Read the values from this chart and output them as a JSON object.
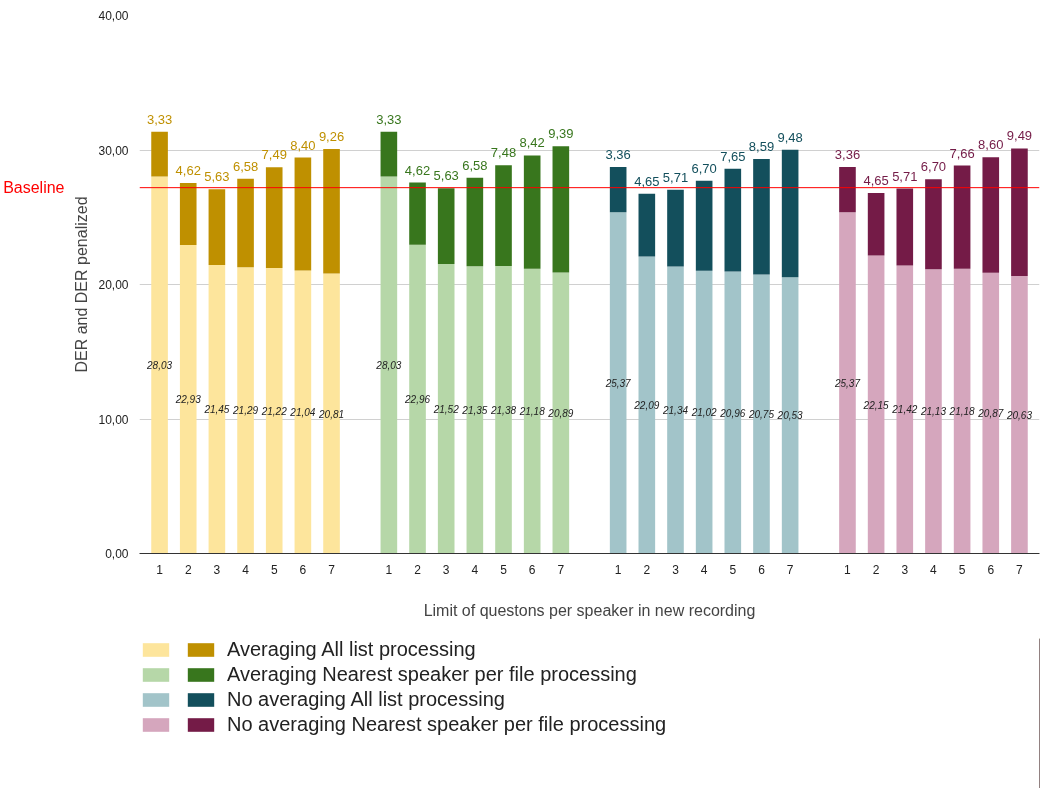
{
  "chart_data": {
    "type": "bar",
    "stacked": true,
    "xlabel": "Limit of questons per speaker in new recording",
    "ylabel": "DER and DER penalized",
    "categories": [
      "1",
      "2",
      "3",
      "4",
      "5",
      "6",
      "7",
      null,
      "1",
      "2",
      "3",
      "4",
      "5",
      "6",
      "7",
      null,
      "1",
      "2",
      "3",
      "4",
      "5",
      "6",
      "7",
      null,
      "1",
      "2",
      "3",
      "4",
      "5",
      "6",
      "7"
    ],
    "series": [
      {
        "color": "#fde59c",
        "values": [
          28.03,
          22.93,
          21.45,
          21.29,
          21.22,
          21.04,
          20.81,
          null,
          null,
          null,
          null,
          null,
          null,
          null,
          null,
          null,
          null,
          null,
          null,
          null,
          null,
          null,
          null,
          null,
          null,
          null,
          null,
          null,
          null,
          null,
          null
        ],
        "value_labels": [
          "28,03",
          "22,93",
          "21,45",
          "21,29",
          "21,22",
          "21,04",
          "20,81",
          null,
          null,
          null,
          null,
          null,
          null,
          null,
          null,
          null,
          null,
          null,
          null,
          null,
          null,
          null,
          null,
          null,
          null,
          null,
          null,
          null,
          null,
          null,
          null
        ]
      },
      {
        "name": "Averaging All list processing",
        "color": "#bf9000",
        "values": [
          3.33,
          4.62,
          5.63,
          6.58,
          7.49,
          8.4,
          9.26,
          null,
          null,
          null,
          null,
          null,
          null,
          null,
          null,
          null,
          null,
          null,
          null,
          null,
          null,
          null,
          null,
          null,
          null,
          null,
          null,
          null,
          null,
          null,
          null
        ],
        "value_labels": [
          "3,33",
          "4,62",
          "5,63",
          "6,58",
          "7,49",
          "8,40",
          "9,26",
          null,
          null,
          null,
          null,
          null,
          null,
          null,
          null,
          null,
          null,
          null,
          null,
          null,
          null,
          null,
          null,
          null,
          null,
          null,
          null,
          null,
          null,
          null,
          null
        ]
      },
      {
        "color": "#b6d7a8",
        "values": [
          null,
          null,
          null,
          null,
          null,
          null,
          null,
          null,
          28.03,
          22.96,
          21.52,
          21.35,
          21.38,
          21.18,
          20.89,
          null,
          null,
          null,
          null,
          null,
          null,
          null,
          null,
          null,
          null,
          null,
          null,
          null,
          null,
          null,
          null
        ],
        "value_labels": [
          null,
          null,
          null,
          null,
          null,
          null,
          null,
          null,
          "28,03",
          "22,96",
          "21,52",
          "21,35",
          "21,38",
          "21,18",
          "20,89",
          null,
          null,
          null,
          null,
          null,
          null,
          null,
          null,
          null,
          null,
          null,
          null,
          null,
          null,
          null,
          null
        ]
      },
      {
        "name": "Averaging Nearest speaker per file processing",
        "color": "#38761d",
        "values": [
          null,
          null,
          null,
          null,
          null,
          null,
          null,
          null,
          3.33,
          4.62,
          5.63,
          6.58,
          7.48,
          8.42,
          9.39,
          null,
          null,
          null,
          null,
          null,
          null,
          null,
          null,
          null,
          null,
          null,
          null,
          null,
          null,
          null,
          null
        ],
        "value_labels": [
          null,
          null,
          null,
          null,
          null,
          null,
          null,
          null,
          "3,33",
          "4,62",
          "5,63",
          "6,58",
          "7,48",
          "8,42",
          "9,39",
          null,
          null,
          null,
          null,
          null,
          null,
          null,
          null,
          null,
          null,
          null,
          null,
          null,
          null,
          null,
          null
        ]
      },
      {
        "color": "#a2c4c9",
        "values": [
          null,
          null,
          null,
          null,
          null,
          null,
          null,
          null,
          null,
          null,
          null,
          null,
          null,
          null,
          null,
          null,
          25.37,
          22.09,
          21.34,
          21.02,
          20.96,
          20.75,
          20.53,
          null,
          null,
          null,
          null,
          null,
          null,
          null,
          null
        ],
        "value_labels": [
          null,
          null,
          null,
          null,
          null,
          null,
          null,
          null,
          null,
          null,
          null,
          null,
          null,
          null,
          null,
          null,
          "25,37",
          "22,09",
          "21,34",
          "21,02",
          "20,96",
          "20,75",
          "20,53",
          null,
          null,
          null,
          null,
          null,
          null,
          null,
          null
        ]
      },
      {
        "name": "No averaging All list processing",
        "color": "#134f5c",
        "values": [
          null,
          null,
          null,
          null,
          null,
          null,
          null,
          null,
          null,
          null,
          null,
          null,
          null,
          null,
          null,
          null,
          3.36,
          4.65,
          5.71,
          6.7,
          7.65,
          8.59,
          9.48,
          null,
          null,
          null,
          null,
          null,
          null,
          null,
          null
        ],
        "value_labels": [
          null,
          null,
          null,
          null,
          null,
          null,
          null,
          null,
          null,
          null,
          null,
          null,
          null,
          null,
          null,
          null,
          "3,36",
          "4,65",
          "5,71",
          "6,70",
          "7,65",
          "8,59",
          "9,48",
          null,
          null,
          null,
          null,
          null,
          null,
          null,
          null
        ]
      },
      {
        "color": "#d5a6bd",
        "values": [
          null,
          null,
          null,
          null,
          null,
          null,
          null,
          null,
          null,
          null,
          null,
          null,
          null,
          null,
          null,
          null,
          null,
          null,
          null,
          null,
          null,
          null,
          null,
          null,
          25.37,
          22.15,
          21.42,
          21.13,
          21.18,
          20.87,
          20.63
        ],
        "value_labels": [
          null,
          null,
          null,
          null,
          null,
          null,
          null,
          null,
          null,
          null,
          null,
          null,
          null,
          null,
          null,
          null,
          null,
          null,
          null,
          null,
          null,
          null,
          null,
          null,
          "25,37",
          "22,15",
          "21,42",
          "21,13",
          "21,18",
          "20,87",
          "20,63"
        ]
      },
      {
        "name": "No averaging Nearest speaker per file processing",
        "color": "#741b47",
        "values": [
          null,
          null,
          null,
          null,
          null,
          null,
          null,
          null,
          null,
          null,
          null,
          null,
          null,
          null,
          null,
          null,
          null,
          null,
          null,
          null,
          null,
          null,
          null,
          null,
          3.36,
          4.65,
          5.71,
          6.7,
          7.66,
          8.6,
          9.49
        ],
        "value_labels": [
          null,
          null,
          null,
          null,
          null,
          null,
          null,
          null,
          null,
          null,
          null,
          null,
          null,
          null,
          null,
          null,
          null,
          null,
          null,
          null,
          null,
          null,
          null,
          null,
          "3,36",
          "4,65",
          "5,71",
          "6,70",
          "7,66",
          "8,60",
          "9,49"
        ]
      }
    ],
    "ylim": [
      0,
      40
    ],
    "yticks": [
      {
        "value": 0,
        "label": "0,00"
      },
      {
        "value": 10,
        "label": "10,00"
      },
      {
        "value": 20,
        "label": "20,00"
      },
      {
        "value": 30,
        "label": "30,00"
      },
      {
        "value": 40,
        "label": "40,00"
      }
    ],
    "ref_lines": [
      {
        "axis": "y",
        "value": 27.2,
        "label": "Baseline",
        "color": "#ff0000"
      }
    ],
    "grid": "y",
    "legend": "bottom"
  }
}
